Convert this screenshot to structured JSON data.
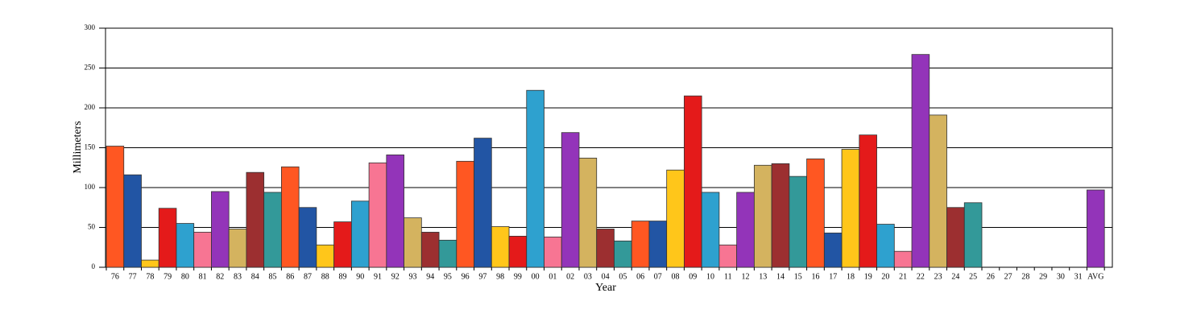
{
  "chart_data": {
    "type": "bar",
    "x_label": "Year",
    "y_label": "Millimeters",
    "categories": [
      "76",
      "77",
      "78",
      "79",
      "80",
      "81",
      "82",
      "83",
      "84",
      "85",
      "86",
      "87",
      "88",
      "89",
      "90",
      "91",
      "92",
      "93",
      "94",
      "95",
      "96",
      "97",
      "98",
      "99",
      "00",
      "01",
      "02",
      "03",
      "04",
      "05",
      "06",
      "07",
      "08",
      "09",
      "10",
      "11",
      "12",
      "13",
      "14",
      "15",
      "16",
      "17",
      "18",
      "19",
      "20",
      "21",
      "22",
      "23",
      "24",
      "25",
      "26",
      "27",
      "28",
      "29",
      "30",
      "31",
      "AVG"
    ],
    "values": [
      152,
      116,
      9,
      74,
      55,
      44,
      95,
      48,
      119,
      94,
      126,
      75,
      28,
      57,
      83,
      131,
      141,
      62,
      44,
      34,
      133,
      162,
      51,
      39,
      222,
      38,
      169,
      137,
      48,
      33,
      58,
      58,
      122,
      215,
      94,
      28,
      94,
      128,
      130,
      114,
      136,
      43,
      148,
      166,
      54,
      20,
      267,
      191,
      75,
      81,
      null,
      null,
      null,
      null,
      null,
      null,
      97
    ],
    "colors": [
      "#ff5722",
      "#2255a4",
      "#ffc61a",
      "#e41a1a",
      "#2ea1cf",
      "#f77593",
      "#9334b9",
      "#d4b35f",
      "#9c2f30",
      "#339999"
    ],
    "ylim": [
      0,
      300
    ],
    "yticks": [
      0,
      50,
      100,
      150,
      200,
      250,
      300
    ],
    "grid": true
  }
}
